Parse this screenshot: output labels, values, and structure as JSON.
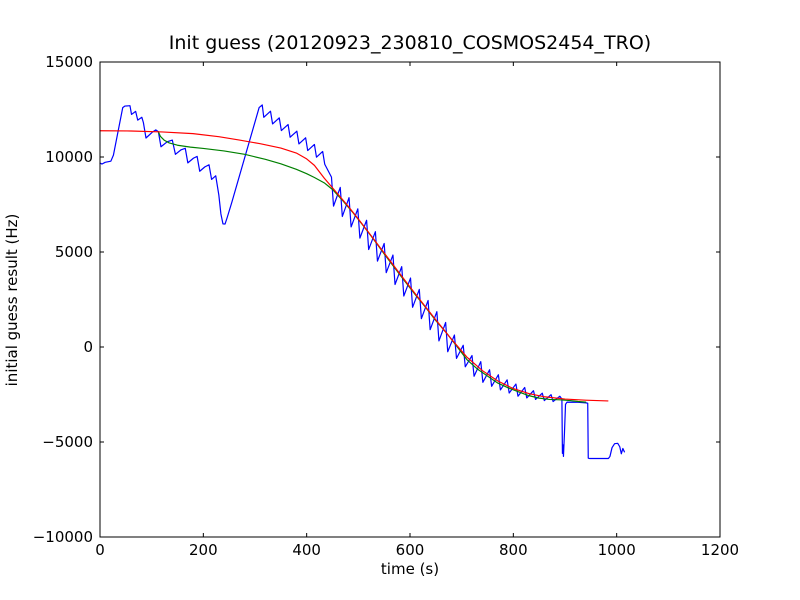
{
  "chart_data": {
    "type": "line",
    "title": "Init guess (20120923_230810_COSMOS2454_TRO)",
    "xlabel": "time (s)",
    "ylabel": "initial guess result (Hz)",
    "xlim": [
      0,
      1200
    ],
    "ylim": [
      -10000,
      15000
    ],
    "xticks": [
      0,
      200,
      400,
      600,
      800,
      1000,
      1200
    ],
    "xtick_labels": [
      "0",
      "200",
      "400",
      "600",
      "800",
      "1000",
      "1200"
    ],
    "yticks": [
      15000,
      10000,
      5000,
      0,
      -5000,
      -10000
    ],
    "ytick_labels": [
      "15000",
      "10000",
      "5000",
      "0",
      "−5000",
      "−10000"
    ],
    "grid": false,
    "legend": null,
    "background_color": "#ffffff",
    "spine_color": "#000000",
    "series": [
      {
        "name": "blue-raw-initial-guess",
        "color": "#0000ff",
        "points": [
          [
            0,
            9680
          ],
          [
            4,
            9630
          ],
          [
            10,
            9720
          ],
          [
            21,
            9780
          ],
          [
            26,
            10100
          ],
          [
            44,
            12600
          ],
          [
            48,
            12680
          ],
          [
            58,
            12700
          ],
          [
            61,
            12240
          ],
          [
            69,
            12400
          ],
          [
            73,
            11940
          ],
          [
            81,
            12090
          ],
          [
            84,
            11810
          ],
          [
            89,
            11000
          ],
          [
            101,
            11300
          ],
          [
            108,
            11430
          ],
          [
            113,
            11330
          ],
          [
            118,
            10540
          ],
          [
            130,
            10800
          ],
          [
            140,
            10890
          ],
          [
            146,
            10140
          ],
          [
            157,
            10380
          ],
          [
            165,
            10460
          ],
          [
            170,
            9690
          ],
          [
            181,
            9940
          ],
          [
            188,
            10030
          ],
          [
            193,
            9250
          ],
          [
            203,
            9480
          ],
          [
            211,
            9590
          ],
          [
            216,
            8820
          ],
          [
            224,
            9010
          ],
          [
            230,
            8000
          ],
          [
            234,
            7000
          ],
          [
            238,
            6480
          ],
          [
            242,
            6470
          ],
          [
            246,
            6800
          ],
          [
            255,
            7600
          ],
          [
            308,
            12600
          ],
          [
            314,
            12740
          ],
          [
            317,
            12090
          ],
          [
            330,
            12410
          ],
          [
            334,
            11740
          ],
          [
            347,
            12060
          ],
          [
            351,
            11390
          ],
          [
            364,
            11710
          ],
          [
            368,
            11040
          ],
          [
            381,
            11360
          ],
          [
            385,
            10690
          ],
          [
            398,
            11010
          ],
          [
            402,
            10340
          ],
          [
            415,
            10660
          ],
          [
            419,
            9990
          ],
          [
            431,
            10290
          ],
          [
            435,
            9620
          ],
          [
            448,
            8940
          ],
          [
            452,
            7415
          ],
          [
            465,
            8400
          ],
          [
            469,
            6870
          ],
          [
            482,
            7860
          ],
          [
            486,
            6320
          ],
          [
            499,
            7270
          ],
          [
            503,
            5730
          ],
          [
            516,
            6670
          ],
          [
            520,
            5130
          ],
          [
            533,
            6070
          ],
          [
            537,
            4520
          ],
          [
            550,
            5450
          ],
          [
            554,
            3910
          ],
          [
            567,
            4840
          ],
          [
            571,
            3290
          ],
          [
            584,
            4230
          ],
          [
            588,
            2680
          ],
          [
            601,
            3630
          ],
          [
            605,
            2090
          ],
          [
            618,
            3030
          ],
          [
            622,
            1490
          ],
          [
            635,
            2450
          ],
          [
            639,
            910
          ],
          [
            652,
            1860
          ],
          [
            656,
            320
          ],
          [
            669,
            1290
          ],
          [
            673,
            -250
          ],
          [
            686,
            630
          ],
          [
            690,
            -600
          ],
          [
            703,
            90
          ],
          [
            707,
            -1040
          ],
          [
            720,
            -450
          ],
          [
            724,
            -1540
          ],
          [
            737,
            -770
          ],
          [
            741,
            -1860
          ],
          [
            754,
            -1200
          ],
          [
            758,
            -2070
          ],
          [
            771,
            -1460
          ],
          [
            775,
            -2260
          ],
          [
            788,
            -1730
          ],
          [
            792,
            -2420
          ],
          [
            805,
            -1950
          ],
          [
            809,
            -2590
          ],
          [
            822,
            -2130
          ],
          [
            826,
            -2680
          ],
          [
            839,
            -2300
          ],
          [
            843,
            -2760
          ],
          [
            856,
            -2430
          ],
          [
            860,
            -2820
          ],
          [
            873,
            -2510
          ],
          [
            877,
            -2870
          ],
          [
            890,
            -2590
          ],
          [
            893,
            -2700
          ],
          [
            894,
            -2720
          ],
          [
            895,
            -5600
          ],
          [
            896,
            -5150
          ],
          [
            897,
            -5760
          ],
          [
            899,
            -4500
          ],
          [
            901,
            -3020
          ],
          [
            904,
            -2900
          ],
          [
            925,
            -2910
          ],
          [
            941,
            -2940
          ],
          [
            944,
            -2960
          ],
          [
            945,
            -5850
          ],
          [
            948,
            -5870
          ],
          [
            984,
            -5870
          ],
          [
            987,
            -5760
          ],
          [
            991,
            -5300
          ],
          [
            996,
            -5090
          ],
          [
            1002,
            -5070
          ],
          [
            1006,
            -5250
          ],
          [
            1009,
            -5620
          ],
          [
            1012,
            -5340
          ],
          [
            1015,
            -5520
          ]
        ]
      },
      {
        "name": "green-model-curve",
        "color": "#008000",
        "points": [
          [
            113,
            11330
          ],
          [
            117,
            11080
          ],
          [
            124,
            10890
          ],
          [
            134,
            10740
          ],
          [
            150,
            10620
          ],
          [
            175,
            10520
          ],
          [
            200,
            10450
          ],
          [
            240,
            10320
          ],
          [
            280,
            10140
          ],
          [
            320,
            9880
          ],
          [
            350,
            9640
          ],
          [
            380,
            9350
          ],
          [
            400,
            9120
          ],
          [
            415,
            8920
          ],
          [
            434,
            8640
          ],
          [
            450,
            8290
          ],
          [
            470,
            7700
          ],
          [
            490,
            7060
          ],
          [
            510,
            6370
          ],
          [
            530,
            5650
          ],
          [
            550,
            4900
          ],
          [
            570,
            4180
          ],
          [
            590,
            3460
          ],
          [
            610,
            2760
          ],
          [
            630,
            2090
          ],
          [
            650,
            1390
          ],
          [
            670,
            760
          ],
          [
            690,
            60
          ],
          [
            710,
            -660
          ],
          [
            730,
            -1150
          ],
          [
            750,
            -1530
          ],
          [
            770,
            -1900
          ],
          [
            790,
            -2150
          ],
          [
            810,
            -2360
          ],
          [
            830,
            -2560
          ],
          [
            850,
            -2690
          ],
          [
            870,
            -2760
          ],
          [
            890,
            -2780
          ],
          [
            910,
            -2820
          ],
          [
            925,
            -2870
          ],
          [
            940,
            -2900
          ]
        ]
      },
      {
        "name": "red-model-curve",
        "color": "#ff0000",
        "points": [
          [
            0,
            11380
          ],
          [
            60,
            11370
          ],
          [
            120,
            11320
          ],
          [
            180,
            11230
          ],
          [
            230,
            11070
          ],
          [
            270,
            10890
          ],
          [
            310,
            10700
          ],
          [
            350,
            10470
          ],
          [
            380,
            10210
          ],
          [
            400,
            9900
          ],
          [
            415,
            9560
          ],
          [
            434,
            8890
          ],
          [
            460,
            8060
          ],
          [
            480,
            7420
          ],
          [
            500,
            6740
          ],
          [
            520,
            6030
          ],
          [
            540,
            5310
          ],
          [
            560,
            4590
          ],
          [
            580,
            3870
          ],
          [
            600,
            3160
          ],
          [
            620,
            2460
          ],
          [
            650,
            1430
          ],
          [
            680,
            420
          ],
          [
            710,
            -530
          ],
          [
            740,
            -1240
          ],
          [
            770,
            -1790
          ],
          [
            800,
            -2190
          ],
          [
            830,
            -2450
          ],
          [
            860,
            -2620
          ],
          [
            900,
            -2740
          ],
          [
            940,
            -2800
          ],
          [
            983,
            -2840
          ]
        ]
      }
    ]
  }
}
